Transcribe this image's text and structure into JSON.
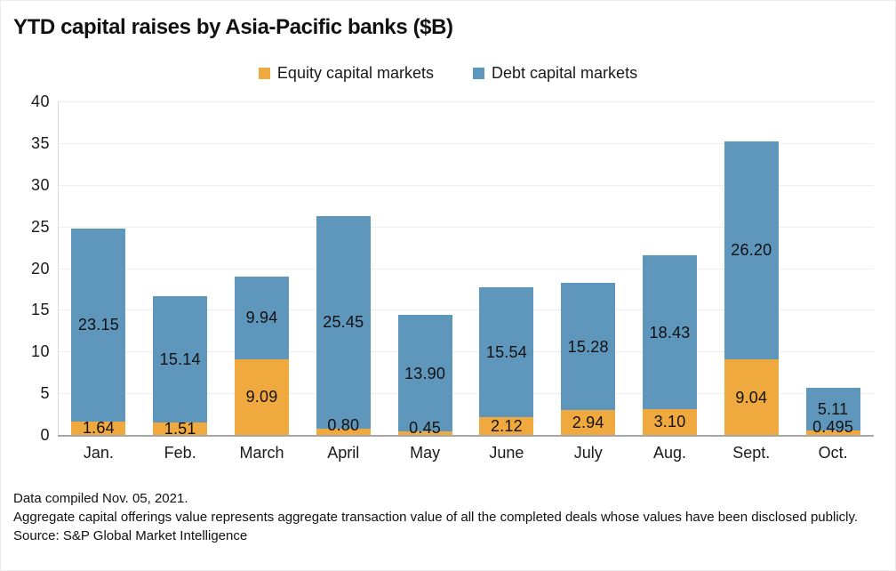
{
  "title": "YTD capital raises by Asia-Pacific banks ($B)",
  "legend": [
    {
      "label": "Equity capital markets",
      "color": "#F0A93E"
    },
    {
      "label": "Debt capital markets",
      "color": "#5E96BC"
    }
  ],
  "chart_data": {
    "type": "bar",
    "stacked": true,
    "title": "YTD capital raises by Asia-Pacific banks ($B)",
    "unit": "$B",
    "categories": [
      "Jan.",
      "Feb.",
      "March",
      "April",
      "May",
      "June",
      "July",
      "Aug.",
      "Sept.",
      "Oct."
    ],
    "series": [
      {
        "name": "Equity capital markets",
        "color": "#F0A93E",
        "values": [
          1.64,
          1.51,
          9.09,
          0.8,
          0.45,
          2.12,
          2.94,
          3.1,
          9.04,
          0.495
        ],
        "labels": [
          "1.64",
          "1.51",
          "9.09",
          "0.80",
          "0.45",
          "2.12",
          "2.94",
          "3.10",
          "9.04",
          "0.495"
        ]
      },
      {
        "name": "Debt capital markets",
        "color": "#5E96BC",
        "values": [
          23.15,
          15.14,
          9.94,
          25.45,
          13.9,
          15.54,
          15.28,
          18.43,
          26.2,
          5.11
        ],
        "labels": [
          "23.15",
          "15.14",
          "9.94",
          "25.45",
          "13.90",
          "15.54",
          "15.28",
          "18.43",
          "26.20",
          "5.11"
        ]
      }
    ],
    "xlabel": "",
    "ylabel": "",
    "ylim": [
      0,
      40
    ],
    "yticks": [
      0,
      5,
      10,
      15,
      20,
      25,
      30,
      35,
      40
    ],
    "grid": true,
    "legend_position": "top"
  },
  "footnotes": {
    "line1": "Data compiled Nov. 05, 2021.",
    "line2": "Aggregate capital offerings value represents aggregate transaction value of all the completed deals whose values have been disclosed publicly.",
    "line3": "Source: S&P Global Market Intelligence"
  },
  "colors": {
    "axis_line": "#d9d9d9",
    "baseline": "#a6a6a6",
    "gridline": "#efefef",
    "text": "#1a1a1a"
  }
}
